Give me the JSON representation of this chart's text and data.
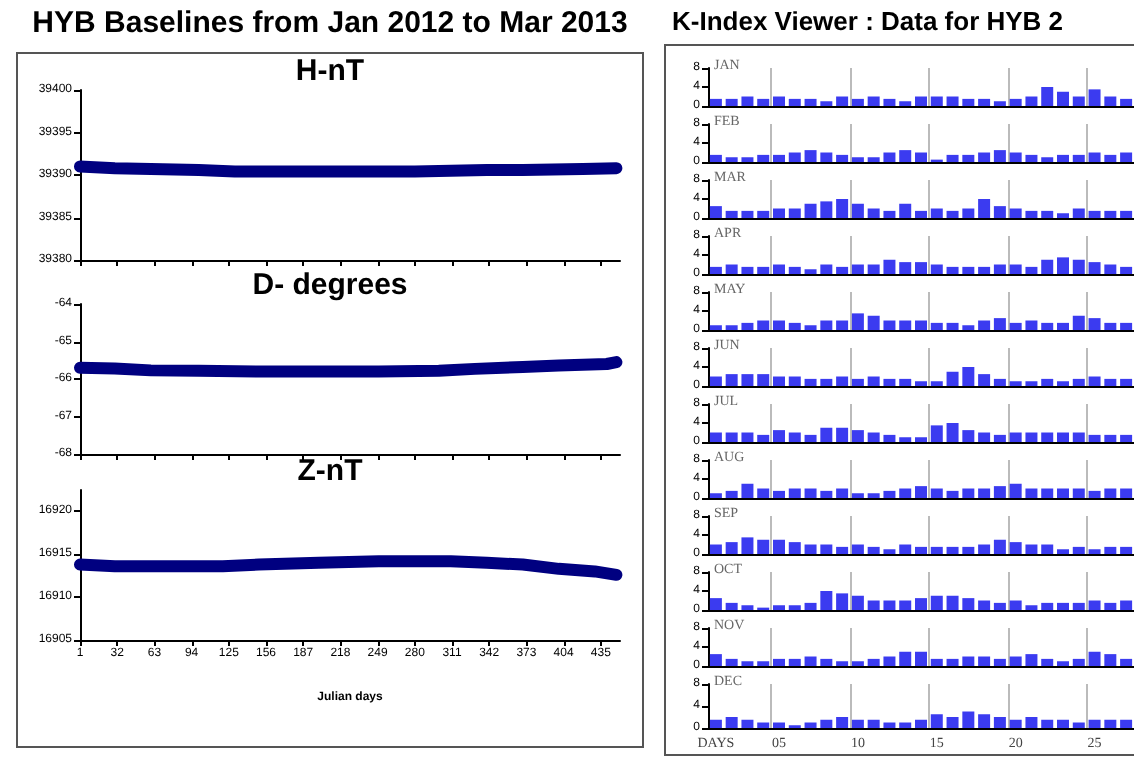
{
  "chart_data": [
    {
      "type": "line",
      "title": "H-nT",
      "annotations": [
        "HYB Baselines from Jan 2012 to Mar 2013"
      ],
      "tick_labels": "y",
      "xlim": [
        1,
        451
      ],
      "xticks": [
        1,
        32,
        63,
        94,
        125,
        156,
        187,
        218,
        249,
        280,
        311,
        342,
        373,
        404,
        435
      ],
      "ylim": [
        39380,
        39400
      ],
      "yticks": [
        39380,
        39385,
        39390,
        39395,
        39400
      ],
      "series": [
        {
          "color": "#000080",
          "x": [
            1,
            30,
            60,
            100,
            130,
            200,
            280,
            340,
            370,
            420,
            448
          ],
          "values": [
            39391,
            39390.8,
            39390.7,
            39390.6,
            39390.4,
            39390.4,
            39390.4,
            39390.6,
            39390.6,
            39390.7,
            39390.8
          ]
        }
      ]
    },
    {
      "type": "line",
      "title": "D- degrees",
      "tick_labels": "y",
      "xlim": [
        1,
        451
      ],
      "xticks": [
        1,
        32,
        63,
        94,
        125,
        156,
        187,
        218,
        249,
        280,
        311,
        342,
        373,
        404,
        435
      ],
      "ylim": [
        -68,
        -64
      ],
      "yticks": [
        -64,
        -65,
        -66,
        -67,
        -68
      ],
      "series": [
        {
          "color": "#000080",
          "x": [
            1,
            30,
            60,
            100,
            150,
            250,
            300,
            330,
            370,
            400,
            440,
            448
          ],
          "values": [
            -65.7,
            -65.72,
            -65.77,
            -65.78,
            -65.8,
            -65.8,
            -65.78,
            -65.73,
            -65.68,
            -65.64,
            -65.6,
            -65.55
          ]
        }
      ]
    },
    {
      "type": "line",
      "title": "Z-nT",
      "xlabel": "Julian days",
      "xlim": [
        1,
        451
      ],
      "xticks": [
        1,
        32,
        63,
        94,
        125,
        156,
        187,
        218,
        249,
        280,
        311,
        342,
        373,
        404,
        435
      ],
      "ylim": [
        16905,
        16922.5
      ],
      "yticks": [
        16905,
        16910,
        16915,
        16920
      ],
      "series": [
        {
          "color": "#000080",
          "x": [
            1,
            30,
            120,
            150,
            200,
            250,
            310,
            340,
            370,
            400,
            430,
            448
          ],
          "values": [
            16913.8,
            16913.6,
            16913.6,
            16913.8,
            16914,
            16914.2,
            16914.2,
            16914,
            16913.8,
            16913.3,
            16913,
            16912.6
          ]
        }
      ]
    },
    {
      "type": "bar",
      "title": "JAN",
      "annotations": [
        "K-Index Viewer : Data for HYB 2"
      ],
      "tick_labels": "y",
      "grid": "x",
      "color": "#3b3bf0",
      "categories": [
        null,
        null,
        null,
        null,
        null,
        null,
        null,
        null,
        null,
        null,
        null,
        null,
        null,
        null,
        null,
        null,
        null,
        null,
        null,
        null,
        null,
        null,
        null,
        null,
        null,
        null,
        null
      ],
      "ylim": [
        0,
        8
      ],
      "yticks": [
        0,
        4,
        8
      ],
      "values": [
        1.5,
        1.5,
        2,
        1.5,
        2,
        1.5,
        1.5,
        1,
        2,
        1.5,
        2,
        1.5,
        1,
        2,
        2,
        2,
        1.5,
        1.5,
        1,
        1.5,
        2,
        4,
        3,
        2,
        3.5,
        2,
        1.5
      ]
    },
    {
      "type": "bar",
      "title": "FEB",
      "tick_labels": "y",
      "grid": "x",
      "color": "#3b3bf0",
      "categories": [
        null,
        null,
        null,
        null,
        null,
        null,
        null,
        null,
        null,
        null,
        null,
        null,
        null,
        null,
        null,
        null,
        null,
        null,
        null,
        null,
        null,
        null,
        null,
        null,
        null,
        null,
        null
      ],
      "ylim": [
        0,
        8
      ],
      "yticks": [
        0,
        4,
        8
      ],
      "values": [
        1.5,
        1,
        1,
        1.5,
        1.5,
        2,
        2.5,
        2,
        1.5,
        1,
        1,
        2,
        2.5,
        2,
        0.5,
        1.5,
        1.5,
        2,
        2.5,
        2,
        1.5,
        1,
        1.5,
        1.5,
        2,
        1.5,
        2
      ]
    },
    {
      "type": "bar",
      "title": "MAR",
      "tick_labels": "y",
      "grid": "x",
      "color": "#3b3bf0",
      "categories": [
        null,
        null,
        null,
        null,
        null,
        null,
        null,
        null,
        null,
        null,
        null,
        null,
        null,
        null,
        null,
        null,
        null,
        null,
        null,
        null,
        null,
        null,
        null,
        null,
        null,
        null,
        null
      ],
      "ylim": [
        0,
        8
      ],
      "yticks": [
        0,
        4,
        8
      ],
      "values": [
        2.5,
        1.5,
        1.5,
        1.5,
        2,
        2,
        3,
        3.5,
        4,
        3,
        2,
        1.5,
        3,
        1.5,
        2,
        1.5,
        2,
        4,
        2.5,
        2,
        1.5,
        1.5,
        1,
        2,
        1.5,
        1.5,
        1.5
      ]
    },
    {
      "type": "bar",
      "title": "APR",
      "tick_labels": "y",
      "grid": "x",
      "color": "#3b3bf0",
      "categories": [
        null,
        null,
        null,
        null,
        null,
        null,
        null,
        null,
        null,
        null,
        null,
        null,
        null,
        null,
        null,
        null,
        null,
        null,
        null,
        null,
        null,
        null,
        null,
        null,
        null,
        null,
        null
      ],
      "ylim": [
        0,
        8
      ],
      "yticks": [
        0,
        4,
        8
      ],
      "values": [
        1.5,
        2,
        1.5,
        1.5,
        2,
        1.5,
        1,
        2,
        1.5,
        2,
        2,
        3,
        2.5,
        2.5,
        2,
        1.5,
        1.5,
        1.5,
        2,
        2,
        1.5,
        3,
        3.5,
        3,
        2.5,
        2,
        1.5
      ]
    },
    {
      "type": "bar",
      "title": "MAY",
      "tick_labels": "y",
      "grid": "x",
      "color": "#3b3bf0",
      "categories": [
        null,
        null,
        null,
        null,
        null,
        null,
        null,
        null,
        null,
        null,
        null,
        null,
        null,
        null,
        null,
        null,
        null,
        null,
        null,
        null,
        null,
        null,
        null,
        null,
        null,
        null,
        null
      ],
      "ylim": [
        0,
        8
      ],
      "yticks": [
        0,
        4,
        8
      ],
      "values": [
        1,
        1,
        1.5,
        2,
        2,
        1.5,
        1,
        2,
        2,
        3.5,
        3,
        2,
        2,
        2,
        1.5,
        1.5,
        1,
        2,
        2.5,
        1.5,
        2,
        1.5,
        1.5,
        3,
        2.5,
        1.5,
        1.5
      ]
    },
    {
      "type": "bar",
      "title": "JUN",
      "tick_labels": "y",
      "grid": "x",
      "color": "#3b3bf0",
      "categories": [
        null,
        null,
        null,
        null,
        null,
        null,
        null,
        null,
        null,
        null,
        null,
        null,
        null,
        null,
        null,
        null,
        null,
        null,
        null,
        null,
        null,
        null,
        null,
        null,
        null,
        null,
        null
      ],
      "ylim": [
        0,
        8
      ],
      "yticks": [
        0,
        4,
        8
      ],
      "values": [
        2,
        2.5,
        2.5,
        2.5,
        2,
        2,
        1.5,
        1.5,
        2,
        1.5,
        2,
        1.5,
        1.5,
        1,
        1,
        3,
        4,
        2.5,
        1.5,
        1,
        1,
        1.5,
        1,
        1.5,
        2,
        1.5,
        1.5
      ]
    },
    {
      "type": "bar",
      "title": "JUL",
      "tick_labels": "y",
      "grid": "x",
      "color": "#3b3bf0",
      "categories": [
        null,
        null,
        null,
        null,
        null,
        null,
        null,
        null,
        null,
        null,
        null,
        null,
        null,
        null,
        null,
        null,
        null,
        null,
        null,
        null,
        null,
        null,
        null,
        null,
        null,
        null,
        null
      ],
      "ylim": [
        0,
        8
      ],
      "yticks": [
        0,
        4,
        8
      ],
      "values": [
        2,
        2,
        2,
        1.5,
        2.5,
        2,
        1.5,
        3,
        3,
        2.5,
        2,
        1.5,
        1,
        1,
        3.5,
        4,
        2.5,
        2,
        1.5,
        2,
        2,
        2,
        2,
        2,
        1.5,
        1.5,
        1.5
      ]
    },
    {
      "type": "bar",
      "title": "AUG",
      "tick_labels": "y",
      "grid": "x",
      "color": "#3b3bf0",
      "categories": [
        null,
        null,
        null,
        null,
        null,
        null,
        null,
        null,
        null,
        null,
        null,
        null,
        null,
        null,
        null,
        null,
        null,
        null,
        null,
        null,
        null,
        null,
        null,
        null,
        null,
        null,
        null
      ],
      "ylim": [
        0,
        8
      ],
      "yticks": [
        0,
        4,
        8
      ],
      "values": [
        1,
        1.5,
        3,
        2,
        1.5,
        2,
        2,
        1.5,
        2,
        1,
        1,
        1.5,
        2,
        2.5,
        2,
        1.5,
        2,
        2,
        2.5,
        3,
        2,
        2,
        2,
        2,
        1.5,
        2,
        2
      ]
    },
    {
      "type": "bar",
      "title": "SEP",
      "tick_labels": "y",
      "grid": "x",
      "color": "#3b3bf0",
      "categories": [
        null,
        null,
        null,
        null,
        null,
        null,
        null,
        null,
        null,
        null,
        null,
        null,
        null,
        null,
        null,
        null,
        null,
        null,
        null,
        null,
        null,
        null,
        null,
        null,
        null,
        null,
        null
      ],
      "ylim": [
        0,
        8
      ],
      "yticks": [
        0,
        4,
        8
      ],
      "values": [
        2,
        2.5,
        3.5,
        3,
        3,
        2.5,
        2,
        2,
        1.5,
        2,
        1.5,
        1,
        2,
        1.5,
        1.5,
        1.5,
        1.5,
        2,
        3,
        2.5,
        2,
        2,
        1,
        1.5,
        1,
        1.5,
        1.5
      ]
    },
    {
      "type": "bar",
      "title": "OCT",
      "tick_labels": "y",
      "grid": "x",
      "color": "#3b3bf0",
      "categories": [
        null,
        null,
        null,
        null,
        null,
        null,
        null,
        null,
        null,
        null,
        null,
        null,
        null,
        null,
        null,
        null,
        null,
        null,
        null,
        null,
        null,
        null,
        null,
        null,
        null,
        null,
        null
      ],
      "ylim": [
        0,
        8
      ],
      "yticks": [
        0,
        4,
        8
      ],
      "values": [
        2.5,
        1.5,
        1,
        0.5,
        1,
        1,
        1.5,
        4,
        3.5,
        3,
        2,
        2,
        2,
        2.5,
        3,
        3,
        2.5,
        2,
        1.5,
        2,
        1,
        1.5,
        1.5,
        1.5,
        2,
        1.5,
        2
      ]
    },
    {
      "type": "bar",
      "title": "NOV",
      "tick_labels": "y",
      "grid": "x",
      "color": "#3b3bf0",
      "categories": [
        null,
        null,
        null,
        null,
        null,
        null,
        null,
        null,
        null,
        null,
        null,
        null,
        null,
        null,
        null,
        null,
        null,
        null,
        null,
        null,
        null,
        null,
        null,
        null,
        null,
        null,
        null
      ],
      "ylim": [
        0,
        8
      ],
      "yticks": [
        0,
        4,
        8
      ],
      "values": [
        2.5,
        1.5,
        1,
        1,
        1.5,
        1.5,
        2,
        1.5,
        1,
        1,
        1.5,
        2,
        3,
        3,
        1.5,
        1.5,
        2,
        2,
        1.5,
        2,
        2.5,
        1.5,
        1,
        1.5,
        3,
        2.5,
        1.5
      ]
    },
    {
      "type": "bar",
      "title": "DEC",
      "grid": "x",
      "color": "#3b3bf0",
      "categories": [
        "DAYS",
        null,
        null,
        null,
        "05",
        null,
        null,
        null,
        null,
        "10",
        null,
        null,
        null,
        null,
        "15",
        null,
        null,
        null,
        null,
        "20",
        null,
        null,
        null,
        null,
        "25",
        null,
        null
      ],
      "ylim": [
        0,
        8
      ],
      "yticks": [
        0,
        4,
        8
      ],
      "values": [
        1.5,
        2,
        1.5,
        1,
        1,
        0.5,
        1,
        1.5,
        2,
        1.5,
        1.5,
        1,
        1,
        1.5,
        2.5,
        2,
        3,
        2.5,
        2,
        1.5,
        2,
        1.5,
        1.5,
        1,
        1.5,
        1.5,
        1.5
      ]
    }
  ]
}
